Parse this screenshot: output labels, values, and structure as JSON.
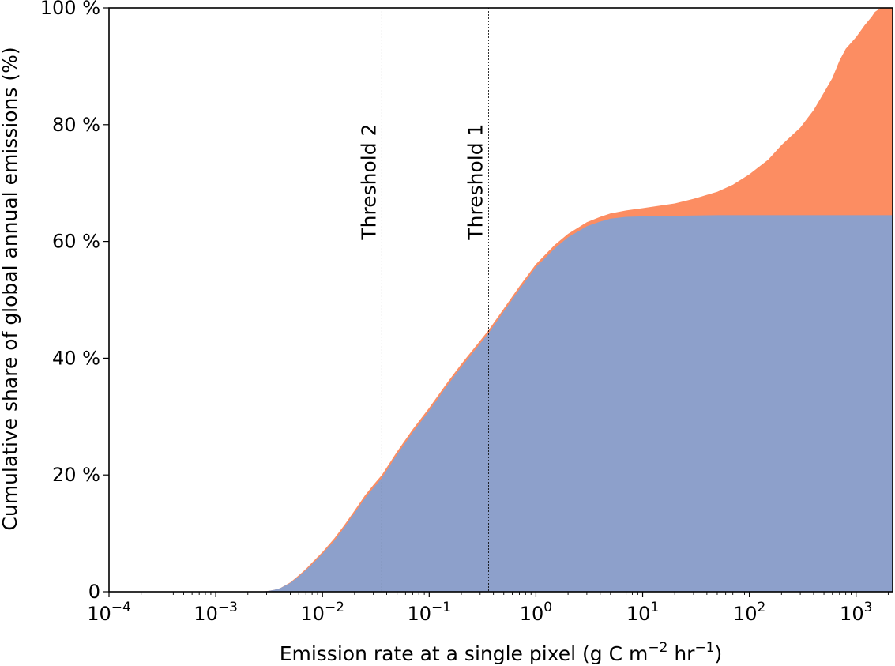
{
  "chart_data": {
    "type": "area",
    "xscale": "log",
    "xlim": [
      0.0001,
      2200
    ],
    "ylim": [
      0,
      100
    ],
    "xlabel": "Emission rate at a single pixel (g C m",
    "xlabel_exp1": "−2",
    "xlabel_mid": " hr",
    "xlabel_exp2": "−1",
    "xlabel_end": ")",
    "ylabel": "Cumulative share of global annual emissions (%)",
    "x_ticks": [
      {
        "value": 0.0001,
        "base": "10",
        "exp": "−4"
      },
      {
        "value": 0.001,
        "base": "10",
        "exp": "−3"
      },
      {
        "value": 0.01,
        "base": "10",
        "exp": "−2"
      },
      {
        "value": 0.1,
        "base": "10",
        "exp": "−1"
      },
      {
        "value": 1,
        "base": "10",
        "exp": "0"
      },
      {
        "value": 10,
        "base": "10",
        "exp": "1"
      },
      {
        "value": 100,
        "base": "10",
        "exp": "2"
      },
      {
        "value": 1000,
        "base": "10",
        "exp": "3"
      }
    ],
    "y_ticks": [
      {
        "value": 0,
        "label": "0"
      },
      {
        "value": 20,
        "label": "20 %"
      },
      {
        "value": 40,
        "label": "40 %"
      },
      {
        "value": 60,
        "label": "60 %"
      },
      {
        "value": 80,
        "label": "80 %"
      },
      {
        "value": 100,
        "label": "100 %"
      }
    ],
    "series": [
      {
        "color": "#8da0cb",
        "x": [
          0.0001,
          0.0025,
          0.003,
          0.0035,
          0.004,
          0.005,
          0.006,
          0.007,
          0.008,
          0.01,
          0.013,
          0.016,
          0.02,
          0.025,
          0.03,
          0.036,
          0.05,
          0.07,
          0.1,
          0.15,
          0.2,
          0.3,
          0.36,
          0.5,
          0.7,
          1,
          1.5,
          2,
          3,
          4,
          5,
          7,
          10,
          20,
          50,
          100,
          1000,
          2200
        ],
        "y": [
          0,
          0,
          0.1,
          0.3,
          0.6,
          1.5,
          2.6,
          3.7,
          4.7,
          6.5,
          8.8,
          11,
          13.5,
          16,
          17.8,
          19.5,
          23.5,
          27.3,
          31,
          35.5,
          38.5,
          42.5,
          44.3,
          48,
          51.8,
          55.6,
          58.8,
          60.7,
          62.6,
          63.4,
          63.9,
          64.2,
          64.3,
          64.4,
          64.5,
          64.5,
          64.5,
          64.5
        ]
      },
      {
        "color": "#fc8d62",
        "x": [
          0.0001,
          0.0025,
          0.003,
          0.0035,
          0.004,
          0.005,
          0.006,
          0.007,
          0.008,
          0.01,
          0.013,
          0.016,
          0.02,
          0.025,
          0.03,
          0.036,
          0.05,
          0.07,
          0.1,
          0.15,
          0.2,
          0.3,
          0.36,
          0.5,
          0.7,
          1,
          1.5,
          2,
          3,
          4,
          5,
          7,
          10,
          20,
          30,
          50,
          70,
          100,
          150,
          200,
          300,
          400,
          500,
          600,
          700,
          800,
          1000,
          1200,
          1400,
          1500,
          1700,
          2000,
          2200
        ],
        "y": [
          0,
          0,
          0.1,
          0.3,
          0.6,
          1.6,
          2.8,
          3.9,
          5,
          6.8,
          9.2,
          11.4,
          13.9,
          16.5,
          18.3,
          20,
          24,
          27.8,
          31.5,
          36,
          39,
          43,
          44.8,
          48.5,
          52.3,
          56.1,
          59.4,
          61.3,
          63.3,
          64.2,
          64.8,
          65.3,
          65.7,
          66.5,
          67.3,
          68.5,
          69.7,
          71.5,
          74,
          76.5,
          79.5,
          82.5,
          85.5,
          88,
          91,
          93,
          95,
          97,
          98.5,
          99.3,
          100,
          100,
          100
        ]
      }
    ],
    "vlines": [
      {
        "x": 0.036,
        "label": "Threshold 2"
      },
      {
        "x": 0.36,
        "label": "Threshold 1"
      }
    ]
  }
}
